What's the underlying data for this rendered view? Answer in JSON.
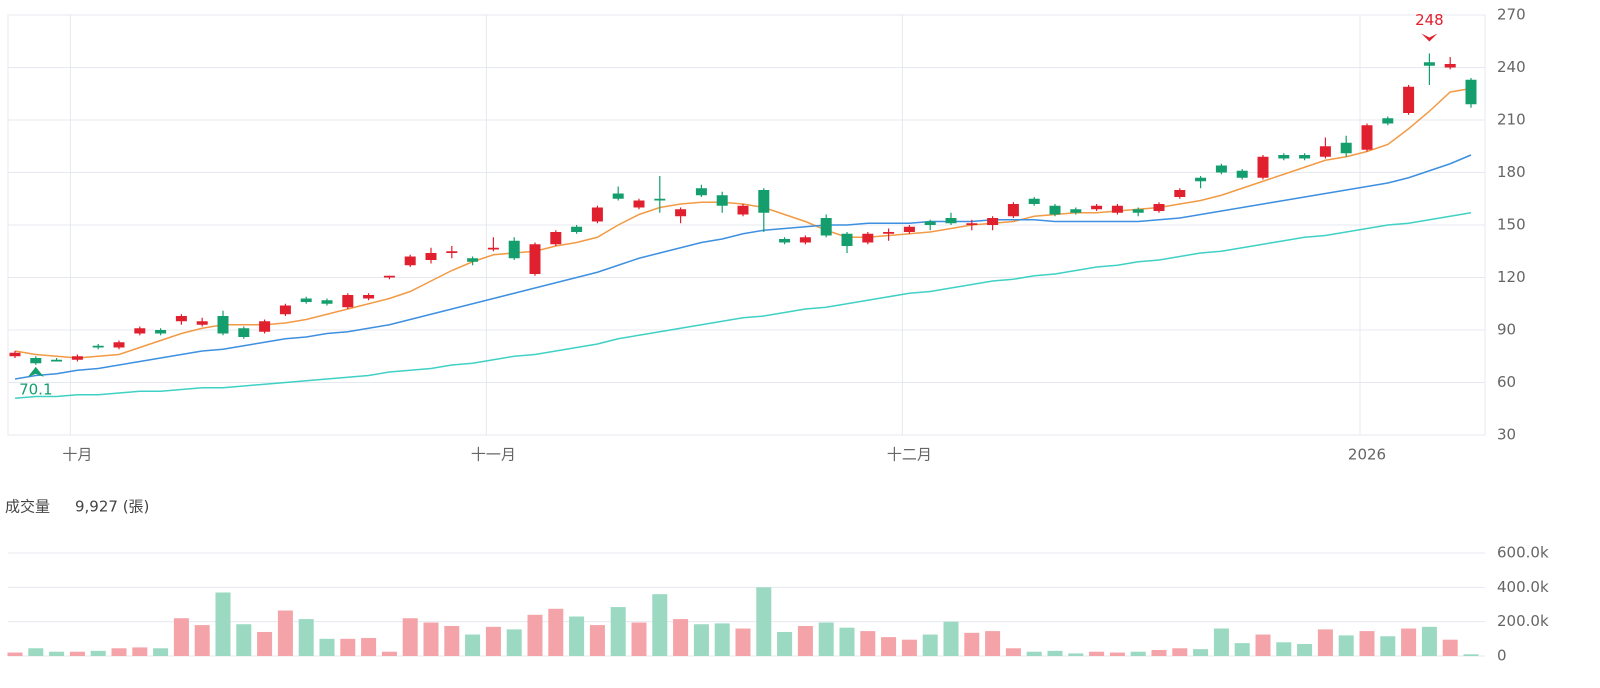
{
  "chart_data": [
    {
      "type": "candlestick",
      "categories": [
        null,
        null,
        null,
        "十月",
        null,
        null,
        null,
        null,
        null,
        null,
        null,
        null,
        null,
        null,
        null,
        null,
        null,
        null,
        null,
        null,
        null,
        null,
        null,
        "十一月",
        null,
        null,
        null,
        null,
        null,
        null,
        null,
        null,
        null,
        null,
        null,
        null,
        null,
        null,
        null,
        null,
        null,
        null,
        null,
        "十二月",
        null,
        null,
        null,
        null,
        null,
        null,
        null,
        null,
        null,
        null,
        null,
        null,
        null,
        null,
        null,
        null,
        null,
        null,
        null,
        null,
        null,
        "2026",
        null,
        null,
        null,
        null,
        null
      ],
      "open": [
        75,
        74,
        73,
        73,
        81,
        80,
        88,
        90,
        95,
        93,
        98,
        91,
        89,
        99,
        108,
        107,
        103,
        108,
        120,
        127,
        130,
        134,
        131,
        136,
        141,
        122,
        139,
        149,
        152,
        168,
        160,
        165,
        155,
        171,
        167,
        156,
        170,
        142,
        140,
        154,
        145,
        140,
        145,
        146,
        152,
        154,
        150,
        150,
        155,
        165,
        161,
        159,
        159,
        157,
        159,
        158,
        166,
        177,
        184,
        181,
        177,
        190,
        190,
        189,
        197,
        193,
        211,
        214,
        243,
        240,
        233
      ],
      "high": [
        78,
        75,
        74,
        76,
        82,
        84,
        92,
        91,
        99,
        97,
        101,
        92,
        96,
        105,
        109,
        108,
        111,
        111,
        121,
        133,
        137,
        138,
        132,
        143,
        143,
        140,
        147,
        150,
        161,
        172,
        165,
        178,
        160,
        173,
        169,
        162,
        171,
        143,
        144,
        156,
        146,
        146,
        148,
        150,
        153,
        157,
        153,
        155,
        163,
        166,
        162,
        160,
        162,
        162,
        160,
        163,
        171,
        178,
        185,
        182,
        190,
        191,
        191,
        200,
        201,
        208,
        212,
        230,
        248,
        246,
        234
      ],
      "low": [
        74,
        70.1,
        72,
        72,
        79,
        79,
        87,
        87,
        93,
        92,
        87,
        85,
        88,
        98,
        105,
        104,
        102,
        107,
        119,
        126,
        128,
        131,
        127,
        135,
        130,
        121,
        138,
        145,
        151,
        164,
        159,
        157,
        151,
        166,
        157,
        155,
        146,
        139,
        139,
        143,
        134,
        139,
        141,
        145,
        147,
        150,
        147,
        147,
        154,
        161,
        155,
        156,
        158,
        156,
        155,
        157,
        165,
        171,
        179,
        176,
        176,
        187,
        187,
        188,
        189,
        192,
        207,
        213,
        230,
        239,
        217
      ],
      "close": [
        77,
        71,
        72,
        75,
        80,
        83,
        91,
        88,
        98,
        95,
        88,
        86,
        95,
        104,
        106,
        105,
        110,
        110,
        121,
        132,
        134,
        135,
        129,
        137,
        131,
        139,
        146,
        146,
        160,
        165,
        164,
        164,
        159,
        167,
        161,
        161,
        157,
        140,
        143,
        144,
        138,
        145,
        146,
        149,
        150,
        151,
        151,
        154,
        162,
        162,
        156,
        157,
        161,
        161,
        157,
        162,
        170,
        175,
        180,
        177,
        189,
        188,
        188,
        195,
        191,
        207,
        208,
        229,
        241,
        242,
        219
      ],
      "up_color": "#e0202f",
      "down_color": "#149e6d",
      "series": [
        {
          "color": "#f29a45",
          "values": [
            78,
            76,
            75,
            74,
            75,
            76,
            80,
            84,
            88,
            91,
            93,
            93,
            93,
            94,
            96,
            99,
            102,
            105,
            108,
            112,
            118,
            124,
            129,
            133,
            134,
            135,
            138,
            140,
            143,
            150,
            156,
            160,
            162,
            163,
            163,
            162,
            160,
            156,
            152,
            147,
            143,
            143,
            144,
            145,
            146,
            148,
            150,
            151,
            152,
            155,
            156,
            157,
            157,
            158,
            159,
            160,
            162,
            164,
            167,
            171,
            175,
            179,
            183,
            187,
            189,
            192,
            196,
            205,
            215,
            226,
            228
          ]
        },
        {
          "color": "#3d8fe0",
          "values": [
            62,
            64,
            65,
            67,
            68,
            70,
            72,
            74,
            76,
            78,
            79,
            81,
            83,
            85,
            86,
            88,
            89,
            91,
            93,
            96,
            99,
            102,
            105,
            108,
            111,
            114,
            117,
            120,
            123,
            127,
            131,
            134,
            137,
            140,
            142,
            145,
            147,
            148,
            149,
            150,
            150,
            151,
            151,
            151,
            152,
            152,
            152,
            153,
            153,
            153,
            152,
            152,
            152,
            152,
            152,
            153,
            154,
            156,
            158,
            160,
            162,
            164,
            166,
            168,
            170,
            172,
            174,
            177,
            181,
            185,
            190
          ]
        },
        {
          "color": "#3fd1c4",
          "values": [
            51,
            52,
            52,
            53,
            53,
            54,
            55,
            55,
            56,
            57,
            57,
            58,
            59,
            60,
            61,
            62,
            63,
            64,
            66,
            67,
            68,
            70,
            71,
            73,
            75,
            76,
            78,
            80,
            82,
            85,
            87,
            89,
            91,
            93,
            95,
            97,
            98,
            100,
            102,
            103,
            105,
            107,
            109,
            111,
            112,
            114,
            116,
            118,
            119,
            121,
            122,
            124,
            126,
            127,
            129,
            130,
            132,
            134,
            135,
            137,
            139,
            141,
            143,
            144,
            146,
            148,
            150,
            151,
            153,
            155,
            157
          ]
        }
      ],
      "annotations": [
        {
          "label": "248",
          "value": 248,
          "kind": "high",
          "color": "#e0202f"
        },
        {
          "label": "70.1",
          "value": 70.1,
          "kind": "low",
          "color": "#149e6d"
        }
      ],
      "ylim": [
        30,
        270
      ],
      "yticks": [
        30,
        60,
        90,
        120,
        150,
        180,
        210,
        240,
        270
      ],
      "grid": true
    },
    {
      "type": "bar",
      "title": "成交量",
      "subtitle": "9,927 (張)",
      "values": [
        20000,
        45000,
        25000,
        25000,
        30000,
        45000,
        50000,
        45000,
        220000,
        180000,
        370000,
        185000,
        140000,
        265000,
        215000,
        100000,
        100000,
        105000,
        25000,
        220000,
        195000,
        175000,
        125000,
        170000,
        155000,
        240000,
        275000,
        230000,
        180000,
        285000,
        195000,
        360000,
        215000,
        185000,
        190000,
        160000,
        400000,
        140000,
        175000,
        195000,
        165000,
        145000,
        110000,
        95000,
        125000,
        200000,
        135000,
        145000,
        45000,
        25000,
        30000,
        15000,
        25000,
        20000,
        25000,
        35000,
        45000,
        40000,
        160000,
        75000,
        125000,
        80000,
        70000,
        155000,
        120000,
        145000,
        115000,
        160000,
        170000,
        95000,
        10000
      ],
      "up_color": "#f4a3a9",
      "down_color": "#9bd9c3",
      "ylim": [
        0,
        600000
      ],
      "yticks": [
        0,
        {
          "value": 200000,
          "label": "200.0k"
        },
        {
          "value": 400000,
          "label": "400.0k"
        },
        {
          "value": 600000,
          "label": "600.0k"
        }
      ],
      "grid": true
    }
  ]
}
